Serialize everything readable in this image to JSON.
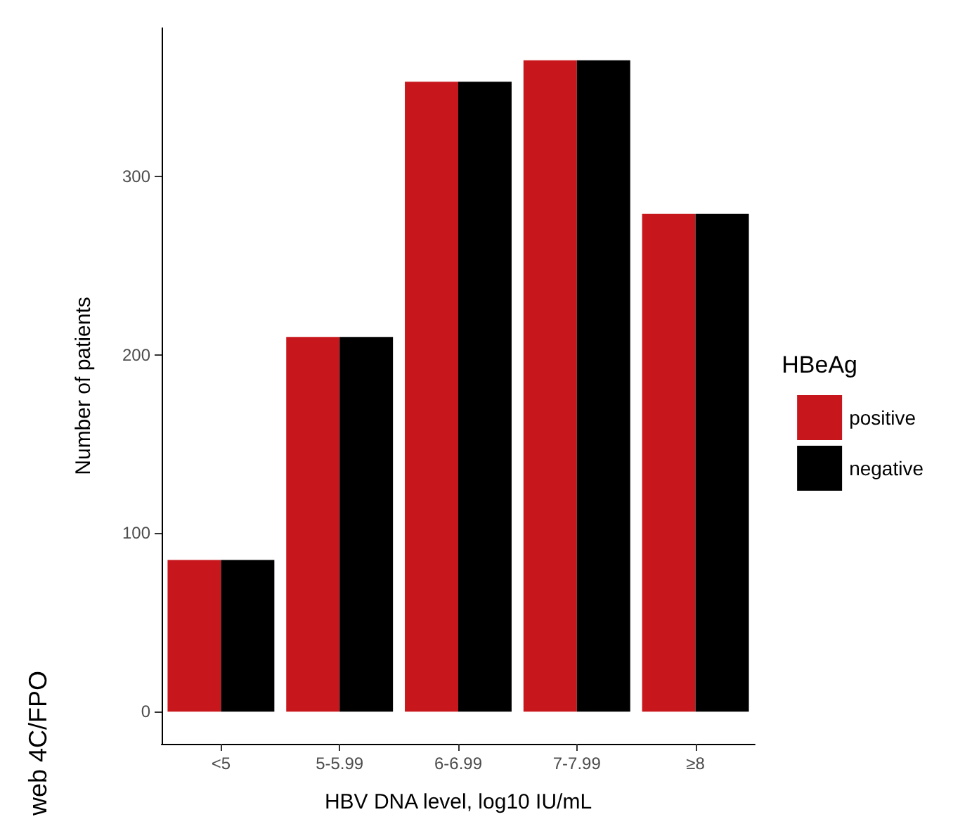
{
  "chart_data": {
    "type": "bar",
    "xlabel": "HBV DNA level, log10 IU/mL",
    "ylabel": "Number of patients",
    "legend_title": "HBeAg",
    "categories": [
      "<5",
      "5-5.99",
      "6-6.99",
      "7-7.99",
      "≥8"
    ],
    "series": [
      {
        "name": "positive",
        "color": "#c8171c",
        "values": [
          85,
          210,
          353,
          365,
          279
        ]
      },
      {
        "name": "negative",
        "color": "#000000",
        "values": [
          85,
          210,
          353,
          365,
          279
        ]
      }
    ],
    "ylim": [
      -18,
      383
    ],
    "yticks": [
      0,
      100,
      200,
      300
    ],
    "grid": false,
    "legend": "right",
    "annotations": [
      "web 4C/FPO"
    ]
  }
}
